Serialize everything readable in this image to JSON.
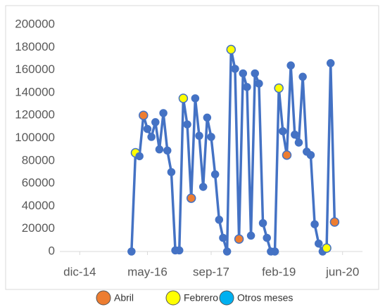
{
  "chart_data": {
    "type": "line",
    "x": [
      "2016-01",
      "2016-02",
      "2016-03",
      "2016-04",
      "2016-05",
      "2016-06",
      "2016-07",
      "2016-08",
      "2016-09",
      "2016-10",
      "2016-11",
      "2016-12",
      "2017-01",
      "2017-02",
      "2017-03",
      "2017-04",
      "2017-05",
      "2017-06",
      "2017-07",
      "2017-08",
      "2017-09",
      "2017-10",
      "2017-11",
      "2017-12",
      "2018-01",
      "2018-02",
      "2018-03",
      "2018-04",
      "2018-05",
      "2018-06",
      "2018-07",
      "2018-08",
      "2018-09",
      "2018-10",
      "2018-11",
      "2018-12",
      "2019-01",
      "2019-02",
      "2019-03",
      "2019-04",
      "2019-05",
      "2019-06",
      "2019-07",
      "2019-08",
      "2019-09",
      "2019-10",
      "2019-11",
      "2019-12",
      "2020-01",
      "2020-02",
      "2020-03",
      "2020-04"
    ],
    "series": [
      {
        "color": "#4472c4",
        "values": [
          0,
          87000,
          84000,
          120000,
          108000,
          101000,
          114000,
          90000,
          122000,
          89000,
          70000,
          1000,
          1000,
          135000,
          112000,
          47000,
          135000,
          102000,
          57000,
          118000,
          101000,
          68000,
          28000,
          12000,
          0,
          178000,
          161000,
          11000,
          157000,
          145000,
          14000,
          157000,
          148000,
          25000,
          12000,
          0,
          0,
          144000,
          106000,
          85000,
          164000,
          103000,
          96000,
          154000,
          88000,
          85000,
          24000,
          7000,
          0,
          3000,
          166000,
          26000
        ],
        "marker_colors": [
          "#4472c4",
          "#ffff00",
          "#4472c4",
          "#ed7d31",
          "#4472c4",
          "#4472c4",
          "#4472c4",
          "#4472c4",
          "#4472c4",
          "#4472c4",
          "#4472c4",
          "#4472c4",
          "#4472c4",
          "#ffff00",
          "#4472c4",
          "#ed7d31",
          "#4472c4",
          "#4472c4",
          "#4472c4",
          "#4472c4",
          "#4472c4",
          "#4472c4",
          "#4472c4",
          "#4472c4",
          "#4472c4",
          "#ffff00",
          "#4472c4",
          "#ed7d31",
          "#4472c4",
          "#4472c4",
          "#4472c4",
          "#4472c4",
          "#4472c4",
          "#4472c4",
          "#4472c4",
          "#4472c4",
          "#4472c4",
          "#ffff00",
          "#4472c4",
          "#ed7d31",
          "#4472c4",
          "#4472c4",
          "#4472c4",
          "#4472c4",
          "#4472c4",
          "#4472c4",
          "#4472c4",
          "#4472c4",
          "#4472c4",
          "#ffff00",
          "#4472c4",
          "#ed7d31"
        ]
      }
    ],
    "legend": [
      {
        "name": "Abril",
        "color": "#ed7d31"
      },
      {
        "name": "Febrero",
        "color": "#ffff00"
      },
      {
        "name": "Otros meses",
        "color": "#00b0f0"
      }
    ],
    "xlim": [
      "2014-07",
      "2020-11"
    ],
    "xticks": [
      {
        "value": "2014-12",
        "label": "dic-14"
      },
      {
        "value": "2016-05",
        "label": "may-16"
      },
      {
        "value": "2017-09",
        "label": "sep-17"
      },
      {
        "value": "2019-02",
        "label": "feb-19"
      },
      {
        "value": "2020-06",
        "label": "jun-20"
      }
    ],
    "ylim": [
      0,
      200000
    ],
    "yticks": [
      0,
      20000,
      40000,
      60000,
      80000,
      100000,
      120000,
      140000,
      160000,
      180000,
      200000
    ]
  }
}
